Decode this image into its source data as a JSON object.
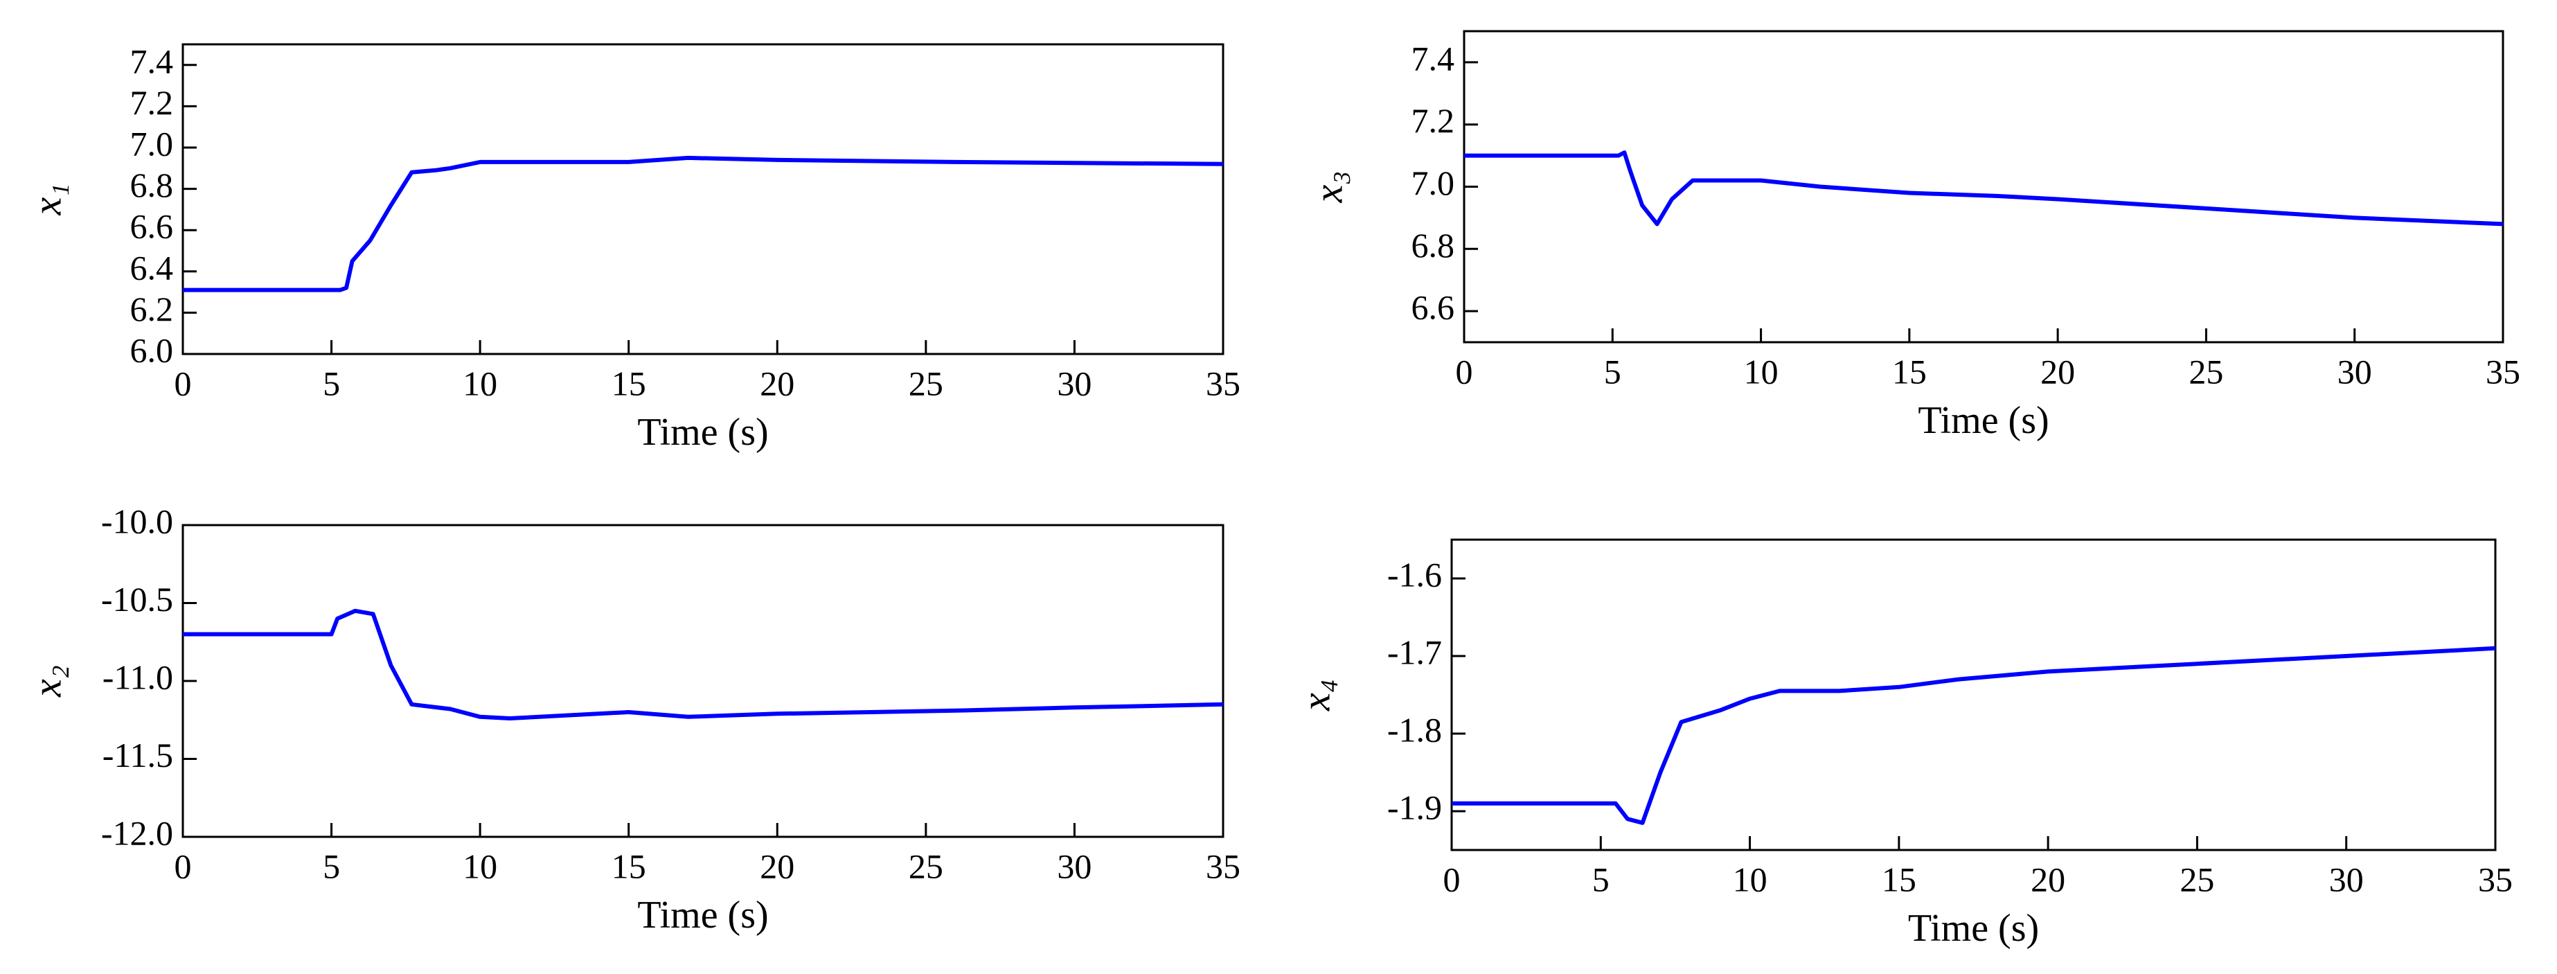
{
  "chart_data": [
    {
      "type": "line",
      "ylabel": "x₁",
      "xlabel": "Time (s)",
      "color": "#0000ff",
      "x": [
        0,
        5.3,
        5.5,
        5.7,
        6.3,
        7,
        7.7,
        8.5,
        9,
        10,
        15,
        17,
        20,
        26,
        35
      ],
      "values": [
        6.31,
        6.31,
        6.32,
        6.45,
        6.55,
        6.72,
        6.88,
        6.89,
        6.9,
        6.93,
        6.93,
        6.95,
        6.94,
        6.93,
        6.92
      ],
      "xlim": [
        0,
        35
      ],
      "xticks": [
        0,
        5,
        10,
        15,
        20,
        25,
        30,
        35
      ],
      "ylim": [
        6.0,
        7.5
      ],
      "yticks": [
        {
          "value": 6.0,
          "label": "6.0"
        },
        6.2,
        6.4,
        6.6,
        6.8,
        {
          "value": 7.0,
          "label": "7.0"
        },
        7.2,
        7.4
      ]
    },
    {
      "type": "line",
      "ylabel": "x₃",
      "xlabel": "Time (s)",
      "color": "#0000ff",
      "x": [
        0,
        5.2,
        5.4,
        5.6,
        6,
        6.5,
        7,
        7.7,
        10,
        12,
        15,
        18,
        20,
        25,
        30,
        35
      ],
      "values": [
        7.1,
        7.1,
        7.11,
        7.05,
        6.94,
        6.88,
        6.96,
        7.02,
        7.02,
        7.0,
        6.98,
        6.97,
        6.96,
        6.93,
        6.9,
        6.88
      ],
      "xlim": [
        0,
        35
      ],
      "xticks": [
        0,
        5,
        10,
        15,
        20,
        25,
        30,
        35
      ],
      "ylim": [
        6.5,
        7.5
      ],
      "yticks": [
        6.6,
        6.8,
        {
          "value": 7.0,
          "label": "7.0"
        },
        7.2,
        7.4
      ]
    },
    {
      "type": "line",
      "ylabel": "x₂",
      "xlabel": "Time (s)",
      "color": "#0000ff",
      "x": [
        0,
        5,
        5.2,
        5.8,
        6.4,
        7,
        7.7,
        9,
        10,
        11,
        15,
        17,
        20,
        26,
        30,
        35
      ],
      "values": [
        -10.7,
        -10.7,
        -10.6,
        -10.55,
        -10.57,
        -10.9,
        -11.15,
        -11.18,
        -11.23,
        -11.24,
        -11.2,
        -11.23,
        -11.21,
        -11.19,
        -11.17,
        -11.15
      ],
      "xlim": [
        0,
        35
      ],
      "xticks": [
        0,
        5,
        10,
        15,
        20,
        25,
        30,
        35
      ],
      "ylim": [
        -12,
        -10
      ],
      "yticks": [
        {
          "value": -12,
          "label": "-12.0"
        },
        -11.5,
        {
          "value": -11,
          "label": "-11.0"
        },
        -10.5,
        {
          "value": -10,
          "label": "-10.0"
        }
      ]
    },
    {
      "type": "line",
      "ylabel": "x₄",
      "xlabel": "Time (s)",
      "color": "#0000ff",
      "x": [
        0,
        5.5,
        5.9,
        6.4,
        7,
        7.7,
        9,
        10,
        11,
        13,
        15,
        17,
        20,
        25,
        30,
        35
      ],
      "values": [
        -1.89,
        -1.89,
        -1.91,
        -1.915,
        -1.85,
        -1.785,
        -1.77,
        -1.755,
        -1.745,
        -1.745,
        -1.74,
        -1.73,
        -1.72,
        -1.71,
        -1.7,
        -1.69
      ],
      "xlim": [
        0,
        35
      ],
      "xticks": [
        0,
        5,
        10,
        15,
        20,
        25,
        30,
        35
      ],
      "ylim": [
        -1.95,
        -1.55
      ],
      "yticks": [
        -1.9,
        -1.8,
        -1.7,
        -1.6
      ]
    }
  ]
}
